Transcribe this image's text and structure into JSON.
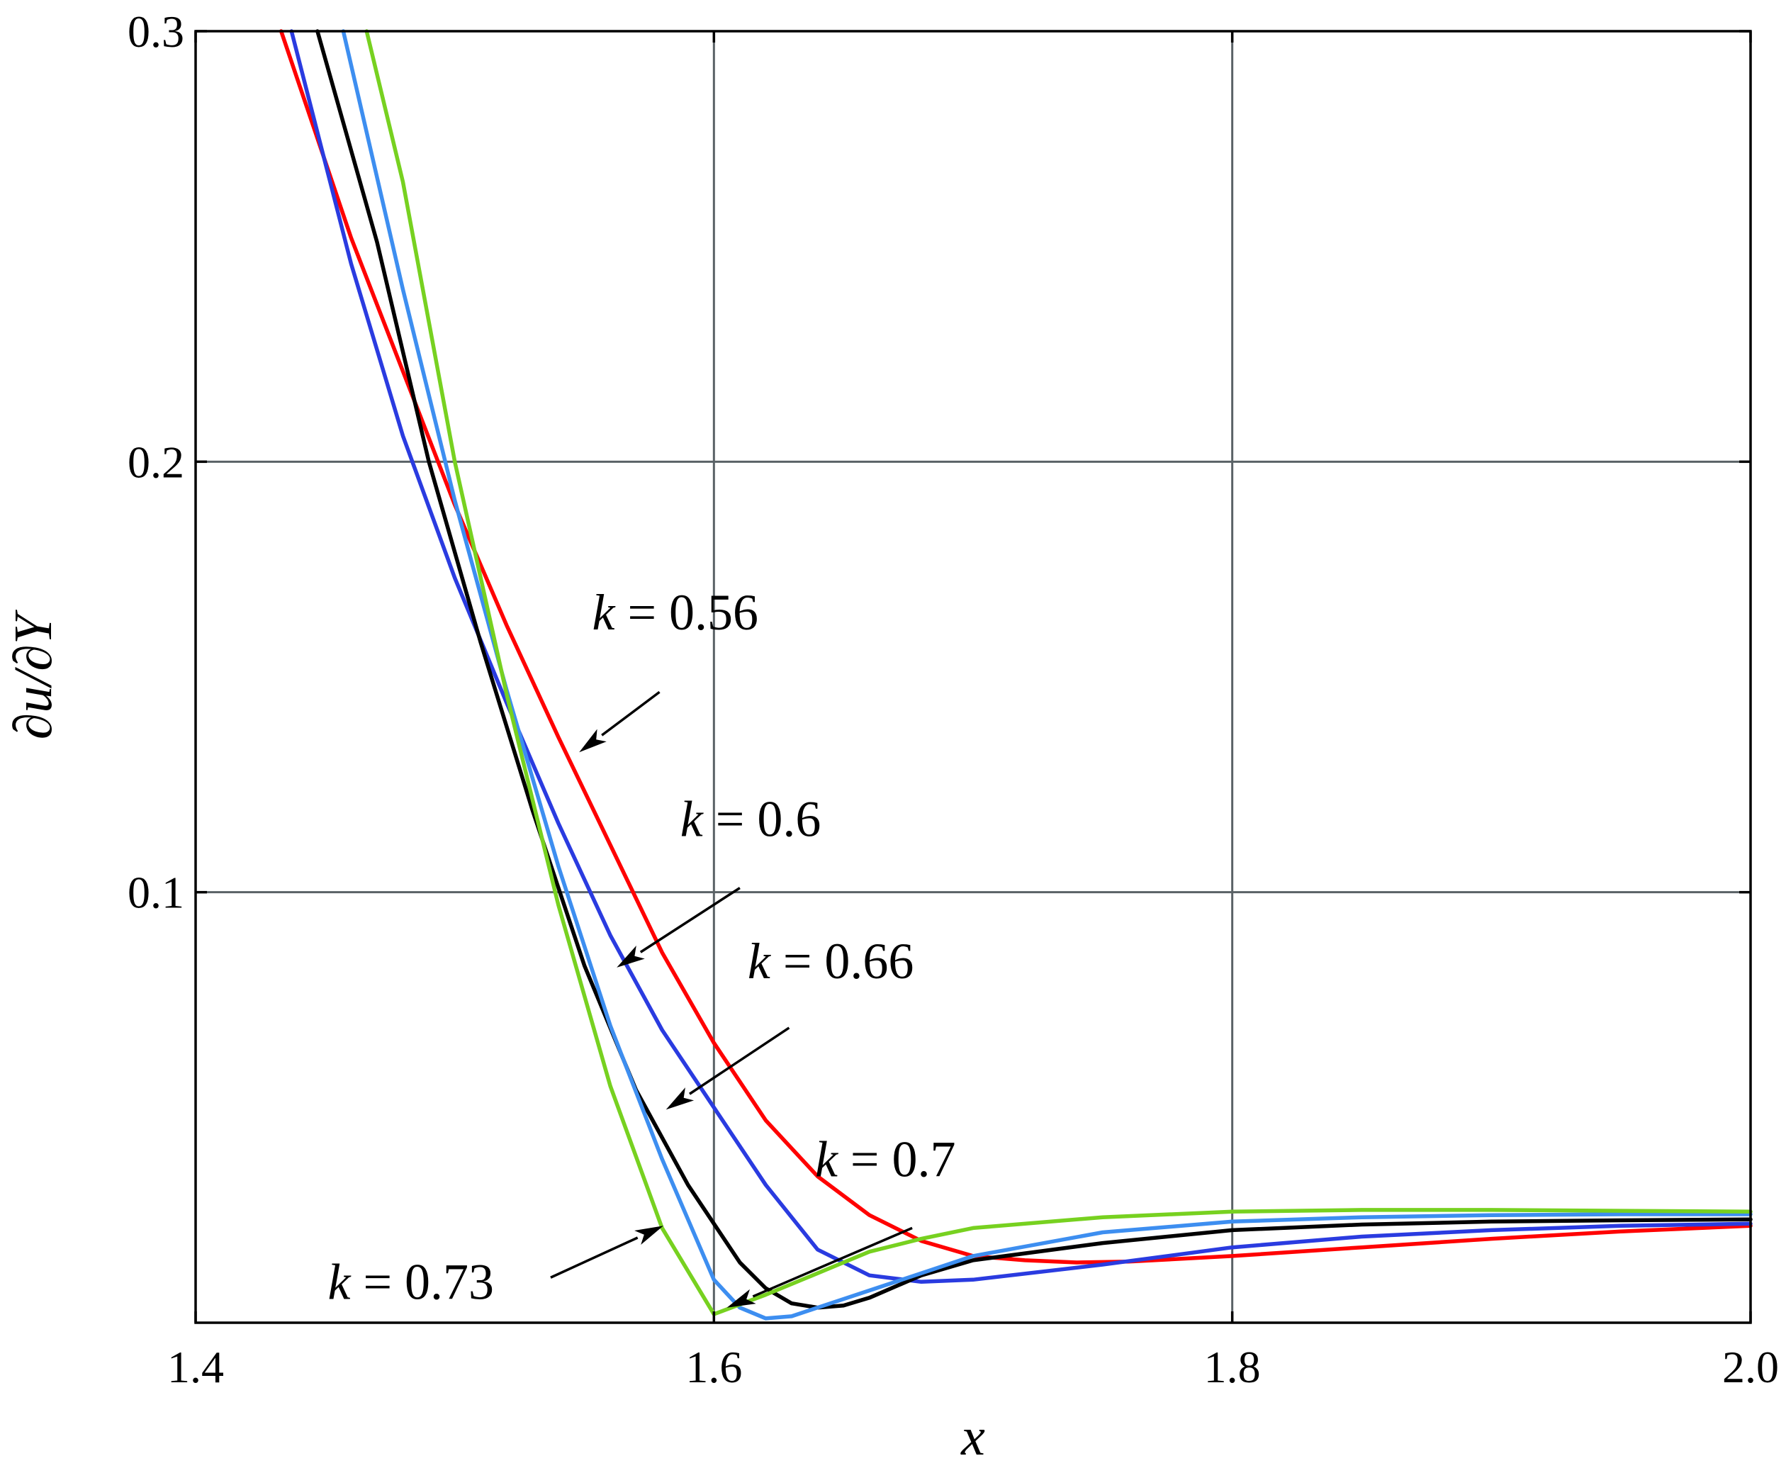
{
  "chart_data": {
    "type": "line",
    "xlabel": "x",
    "ylabel": "∂u/∂Y",
    "xlim": [
      1.4,
      2.0
    ],
    "ylim": [
      0.0,
      0.3
    ],
    "xticks": [
      1.4,
      1.6,
      1.8,
      2.0
    ],
    "xtick_labels": [
      "1.4",
      "1.6",
      "1.8",
      "2.0"
    ],
    "yticks": [
      0.1,
      0.2,
      0.3
    ],
    "ytick_labels": [
      "0.1",
      "0.2",
      "0.3"
    ],
    "grid": true,
    "series": [
      {
        "name": "k = 0.56",
        "color": "#ff0000",
        "x": [
          1.433,
          1.46,
          1.48,
          1.5,
          1.52,
          1.54,
          1.56,
          1.58,
          1.6,
          1.62,
          1.64,
          1.66,
          1.68,
          1.7,
          1.72,
          1.74,
          1.76,
          1.8,
          1.85,
          1.9,
          1.95,
          2.0
        ],
        "y": [
          0.3,
          0.252,
          0.221,
          0.19,
          0.162,
          0.136,
          0.111,
          0.086,
          0.065,
          0.047,
          0.034,
          0.025,
          0.019,
          0.0155,
          0.0145,
          0.014,
          0.0142,
          0.0155,
          0.0175,
          0.0195,
          0.0212,
          0.0225
        ]
      },
      {
        "name": "k = 0.6",
        "color": "#2a3be0",
        "x": [
          1.437,
          1.46,
          1.48,
          1.5,
          1.52,
          1.54,
          1.56,
          1.58,
          1.6,
          1.62,
          1.64,
          1.66,
          1.68,
          1.7,
          1.75,
          1.8,
          1.85,
          1.9,
          1.95,
          2.0
        ],
        "y": [
          0.3,
          0.246,
          0.206,
          0.173,
          0.144,
          0.116,
          0.09,
          0.068,
          0.05,
          0.032,
          0.017,
          0.011,
          0.0095,
          0.01,
          0.0135,
          0.0175,
          0.02,
          0.0215,
          0.0225,
          0.023
        ]
      },
      {
        "name": "k = 0.66",
        "color": "#000000",
        "x": [
          1.447,
          1.47,
          1.49,
          1.51,
          1.53,
          1.55,
          1.57,
          1.59,
          1.6,
          1.61,
          1.62,
          1.63,
          1.64,
          1.65,
          1.66,
          1.68,
          1.7,
          1.75,
          1.8,
          1.85,
          1.9,
          1.95,
          2.0
        ],
        "y": [
          0.3,
          0.251,
          0.2,
          0.158,
          0.119,
          0.083,
          0.054,
          0.032,
          0.023,
          0.014,
          0.008,
          0.0045,
          0.0035,
          0.004,
          0.0058,
          0.011,
          0.0145,
          0.0185,
          0.0215,
          0.0228,
          0.0235,
          0.0238,
          0.024
        ]
      },
      {
        "name": "k = 0.7",
        "color": "#3d8ef0",
        "x": [
          1.457,
          1.48,
          1.5,
          1.52,
          1.54,
          1.56,
          1.58,
          1.6,
          1.61,
          1.62,
          1.63,
          1.64,
          1.66,
          1.68,
          1.7,
          1.75,
          1.8,
          1.85,
          1.9,
          1.95,
          2.0
        ],
        "y": [
          0.3,
          0.24,
          0.191,
          0.147,
          0.106,
          0.069,
          0.038,
          0.01,
          0.0035,
          0.001,
          0.0015,
          0.0035,
          0.0075,
          0.0115,
          0.0155,
          0.021,
          0.0235,
          0.0245,
          0.025,
          0.0252,
          0.0252
        ]
      },
      {
        "name": "k = 0.73",
        "color": "#77d120",
        "x": [
          1.466,
          1.48,
          1.5,
          1.52,
          1.54,
          1.56,
          1.58,
          1.6,
          1.62,
          1.64,
          1.66,
          1.68,
          1.7,
          1.75,
          1.8,
          1.85,
          1.9,
          1.95,
          2.0
        ],
        "y": [
          0.3,
          0.265,
          0.2,
          0.146,
          0.097,
          0.055,
          0.022,
          0.002,
          0.0065,
          0.0115,
          0.0165,
          0.0195,
          0.022,
          0.0245,
          0.0258,
          0.0262,
          0.0262,
          0.026,
          0.0258
        ]
      }
    ],
    "annotations": [
      {
        "k": "k",
        "text": " = 0.56",
        "label_x": 1.553,
        "label_y": 0.161,
        "arrow_from": [
          1.579,
          0.1465
        ],
        "arrow_to": [
          1.548,
          0.1325
        ]
      },
      {
        "k": "k",
        "text": " = 0.6",
        "label_x": 1.587,
        "label_y": 0.113,
        "arrow_from": [
          1.61,
          0.101
        ],
        "arrow_to": [
          1.5625,
          0.0825
        ]
      },
      {
        "k": "k",
        "text": " = 0.66",
        "label_x": 1.613,
        "label_y": 0.08,
        "arrow_from": [
          1.629,
          0.0685
        ],
        "arrow_to": [
          1.5815,
          0.0495
        ]
      },
      {
        "k": "k",
        "text": " = 0.7",
        "label_x": 1.639,
        "label_y": 0.034,
        "arrow_from": [
          1.6765,
          0.022
        ],
        "arrow_to": [
          1.605,
          0.0035
        ]
      },
      {
        "k": "k",
        "text": " = 0.73",
        "label_x": 1.451,
        "label_y": 0.0055,
        "arrow_from": [
          1.537,
          0.0105
        ],
        "arrow_to": [
          1.5805,
          0.0225
        ]
      }
    ]
  }
}
